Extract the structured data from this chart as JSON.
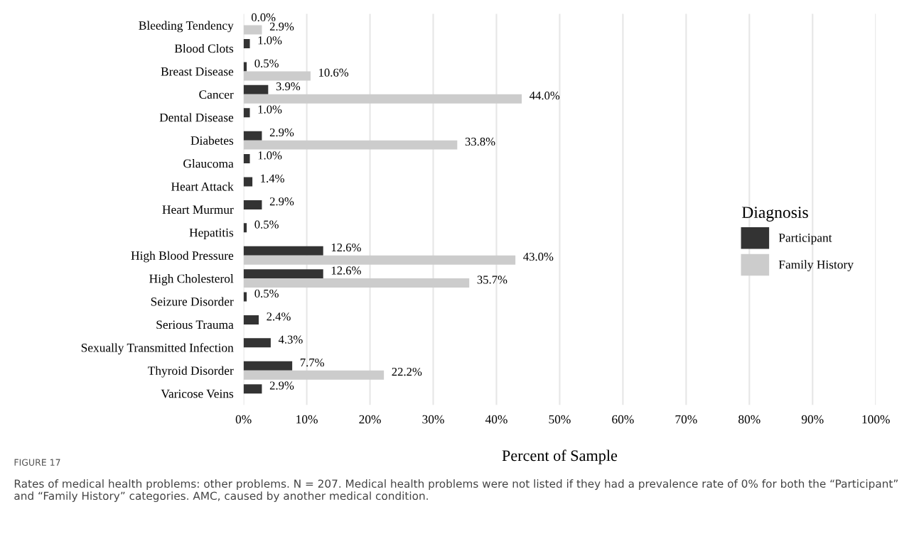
{
  "chart_data": {
    "type": "bar",
    "orientation": "horizontal",
    "xlabel": "Percent of Sample",
    "legend_title": "Diagnosis",
    "legend": "right",
    "grid": "x",
    "categories": [
      "Bleeding Tendency",
      "Blood Clots",
      "Breast Disease",
      "Cancer",
      "Dental Disease",
      "Diabetes",
      "Glaucoma",
      "Heart Attack",
      "Heart Murmur",
      "Hepatitis",
      "High Blood Pressure",
      "High Cholesterol",
      "Seizure Disorder",
      "Serious Trauma",
      "Sexually Transmitted Infection",
      "Thyroid Disorder",
      "Varicose Veins"
    ],
    "series": [
      {
        "name": "Participant",
        "color": "#333333",
        "values": [
          0.0,
          1.0,
          0.5,
          3.9,
          1.0,
          2.9,
          1.0,
          1.4,
          2.9,
          0.5,
          12.6,
          12.6,
          0.5,
          2.4,
          4.3,
          7.7,
          2.9
        ],
        "value_labels": [
          "0.0%",
          "1.0%",
          "0.5%",
          "3.9%",
          "1.0%",
          "2.9%",
          "1.0%",
          "1.4%",
          "2.9%",
          "0.5%",
          "12.6%",
          "12.6%",
          "0.5%",
          "2.4%",
          "4.3%",
          "7.7%",
          "2.9%"
        ]
      },
      {
        "name": "Family History",
        "color": "#cccccc",
        "values": [
          2.9,
          null,
          10.6,
          44.0,
          null,
          33.8,
          null,
          null,
          null,
          null,
          43.0,
          35.7,
          null,
          null,
          null,
          22.2,
          null
        ],
        "value_labels": [
          "2.9%",
          null,
          "10.6%",
          "44.0%",
          null,
          "33.8%",
          null,
          null,
          null,
          null,
          "43.0%",
          "35.7%",
          null,
          null,
          null,
          "22.2%",
          null
        ]
      }
    ],
    "xlim": [
      0,
      100
    ],
    "xticks": [
      {
        "value": 0,
        "label": "0%"
      },
      {
        "value": 10,
        "label": "10%"
      },
      {
        "value": 20,
        "label": "20%"
      },
      {
        "value": 30,
        "label": "30%"
      },
      {
        "value": 40,
        "label": "40%"
      },
      {
        "value": 50,
        "label": "50%"
      },
      {
        "value": 60,
        "label": "60%"
      },
      {
        "value": 70,
        "label": "70%"
      },
      {
        "value": 80,
        "label": "80%"
      },
      {
        "value": 90,
        "label": "90%"
      },
      {
        "value": 100,
        "label": "100%"
      }
    ],
    "annotations": [
      "FIGURE 17",
      "Rates of medical health problems: other problems. N = 207. Medical health problems were not listed if they had a prevalence rate of 0% for both the “Participant” and “Family History” categories. AMC, caused by another medical condition."
    ]
  }
}
